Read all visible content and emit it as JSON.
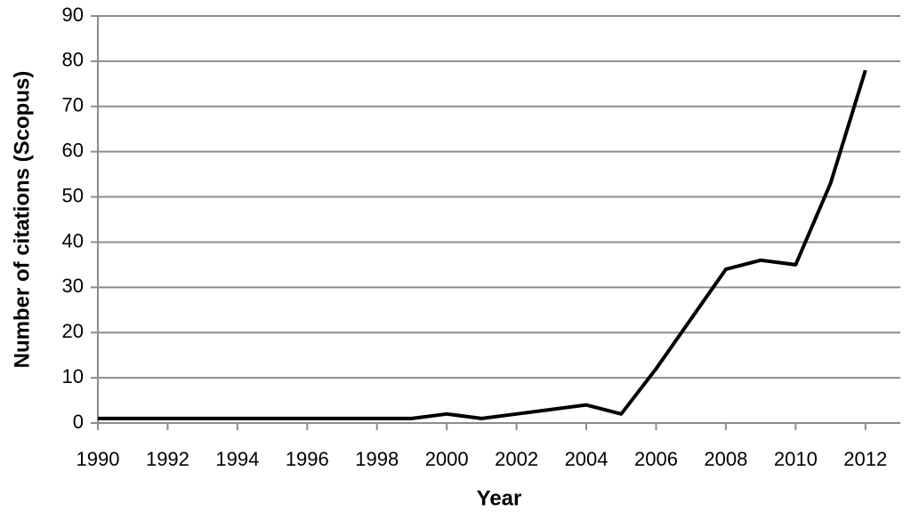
{
  "chart_data": {
    "type": "line",
    "x_label": "Year",
    "y_label": "Number of citations (Scopus)",
    "x": [
      1990,
      1991,
      1992,
      1993,
      1994,
      1995,
      1996,
      1997,
      1998,
      1999,
      2000,
      2001,
      2002,
      2003,
      2004,
      2005,
      2006,
      2007,
      2008,
      2009,
      2010,
      2011,
      2012
    ],
    "series": [
      {
        "name": "Citations",
        "color": "#000000",
        "values": [
          1,
          1,
          1,
          1,
          1,
          1,
          1,
          1,
          1,
          1,
          2,
          1,
          2,
          3,
          4,
          2,
          12,
          23,
          34,
          36,
          35,
          53,
          78
        ]
      }
    ],
    "xlim": [
      1990,
      2013
    ],
    "xticks": [
      1990,
      1992,
      1994,
      1996,
      1998,
      2000,
      2002,
      2004,
      2006,
      2008,
      2010,
      2012
    ],
    "ylim": [
      0,
      90
    ],
    "yticks": [
      0,
      10,
      20,
      30,
      40,
      50,
      60,
      70,
      80,
      90
    ],
    "grid": true
  }
}
